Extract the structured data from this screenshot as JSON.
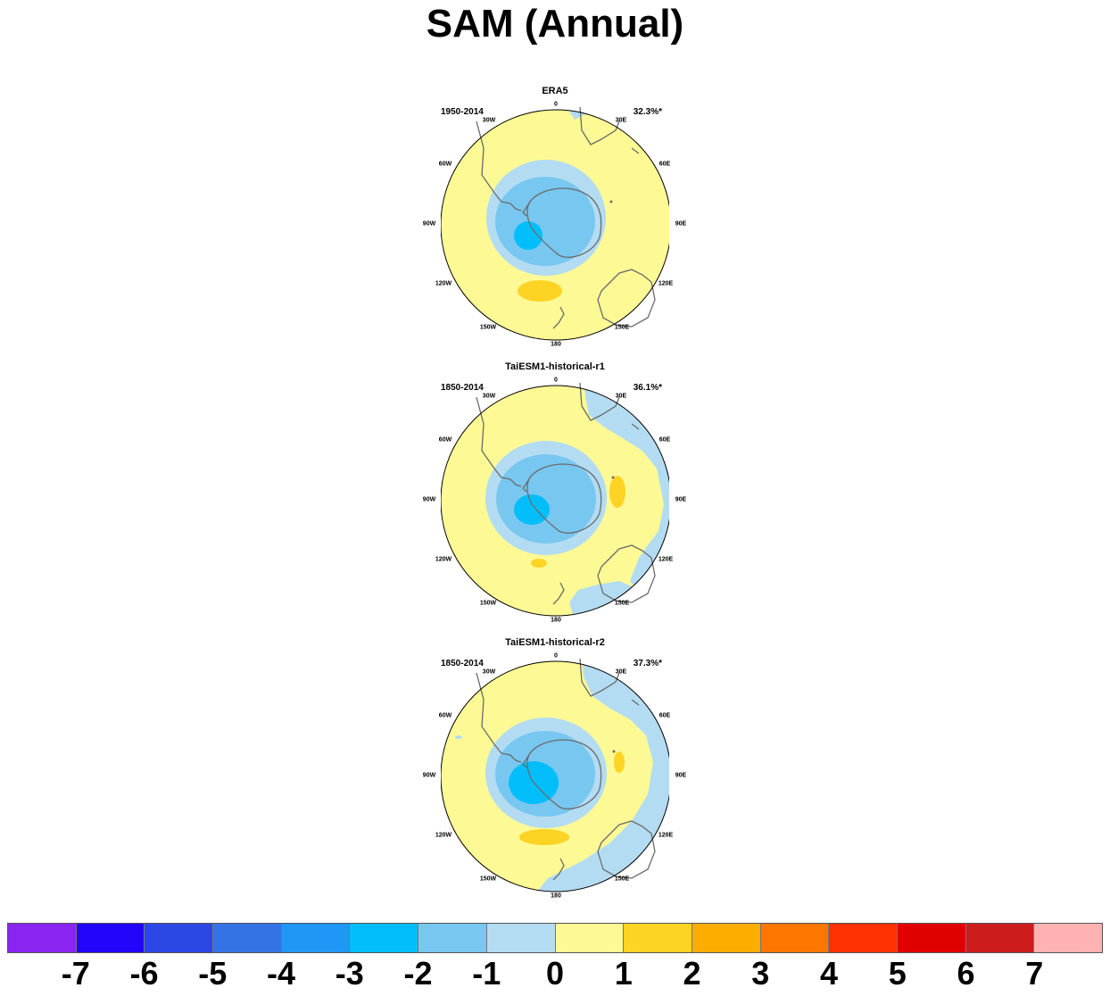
{
  "title": "SAM (Annual)",
  "colors": {
    "levels": [
      "#8a24f0",
      "#2205fb",
      "#2b48e4",
      "#3473e6",
      "#1e97f7",
      "#01befb",
      "#78c7f0",
      "#b3dcf2",
      "#fdf995",
      "#fdd424",
      "#fdac00",
      "#fd7600",
      "#fd3101",
      "#e10000",
      "#cc1c1c",
      "#ffb2b2"
    ],
    "coast": "#6b6b6b"
  },
  "colorbar": {
    "labels": [
      "-7",
      "-6",
      "-5",
      "-4",
      "-3",
      "-2",
      "-1",
      "0",
      "1",
      "2",
      "3",
      "4",
      "5",
      "6",
      "7"
    ]
  },
  "longitude_labels": [
    "0",
    "30E",
    "60E",
    "90E",
    "120E",
    "150E",
    "180",
    "150W",
    "120W",
    "90W",
    "60W",
    "30W"
  ],
  "panels": [
    {
      "title": "ERA5",
      "period": "1950-2014",
      "variance": "32.3%*"
    },
    {
      "title": "TaiESM1-historical-r1",
      "period": "1850-2014",
      "variance": "36.1%*"
    },
    {
      "title": "TaiESM1-historical-r2",
      "period": "1850-2014",
      "variance": "37.3%*"
    }
  ]
}
